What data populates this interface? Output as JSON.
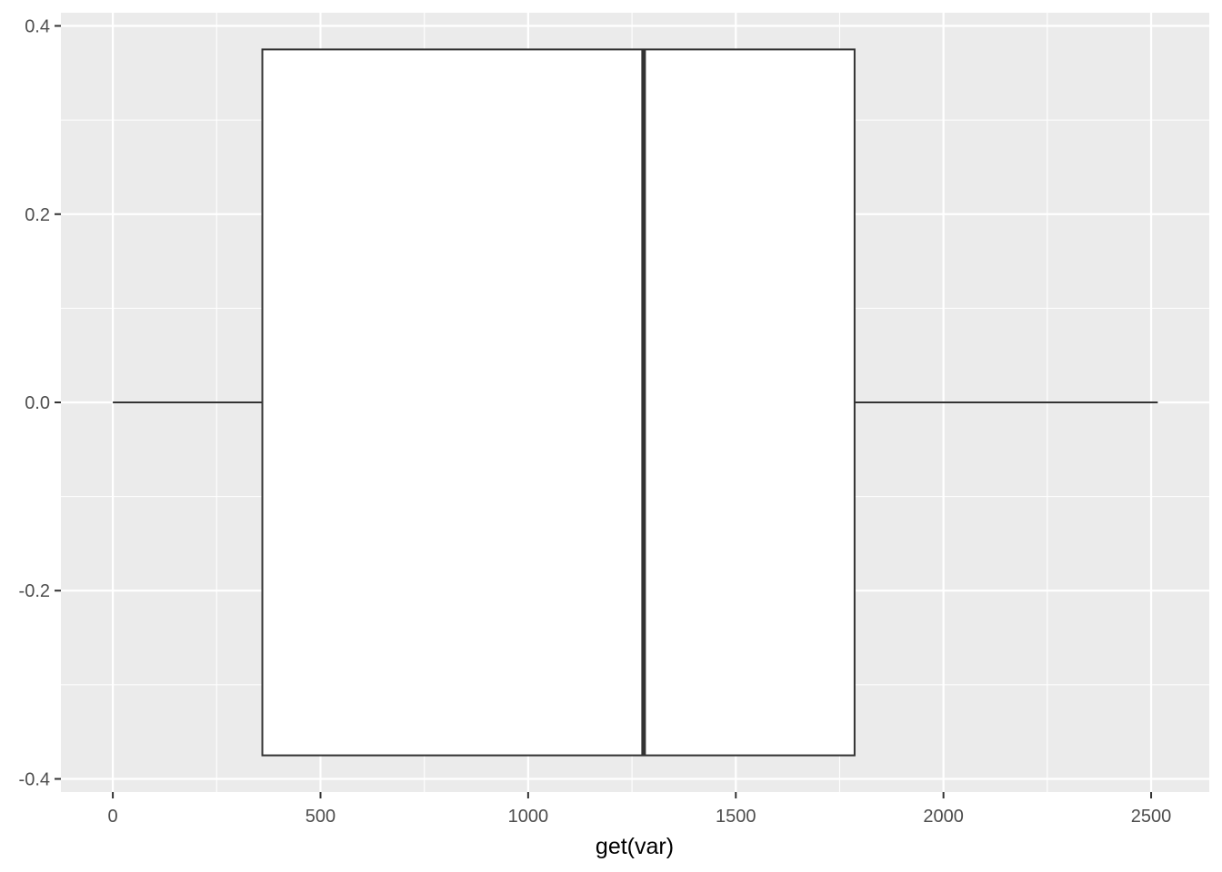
{
  "chart_data": {
    "type": "boxplot",
    "title": "",
    "xlabel": "get(var)",
    "ylabel": "",
    "xlim": [
      -125,
      2640
    ],
    "ylim": [
      -0.414,
      0.414
    ],
    "x_ticks": [
      0,
      500,
      1000,
      1500,
      2000,
      2500
    ],
    "x_tick_labels": [
      "0",
      "500",
      "1000",
      "1500",
      "2000",
      "2500"
    ],
    "y_ticks": [
      -0.4,
      -0.2,
      0.0,
      0.2,
      0.4
    ],
    "y_tick_labels": [
      "-0.4",
      "-0.2",
      "0.0",
      "0.2",
      "0.4"
    ],
    "box": {
      "y_center": 0,
      "half_width": 0.375,
      "min": 0,
      "q1": 360,
      "median": 1278,
      "q3": 1786,
      "max": 2516
    },
    "grid": true,
    "colors": {
      "panel_background": "#EBEBEB",
      "grid_line": "#FFFFFF",
      "box_fill": "#FFFFFF",
      "box_outline": "#333333",
      "tick_text": "#4D4D4D",
      "tick_mark": "#333333"
    }
  }
}
